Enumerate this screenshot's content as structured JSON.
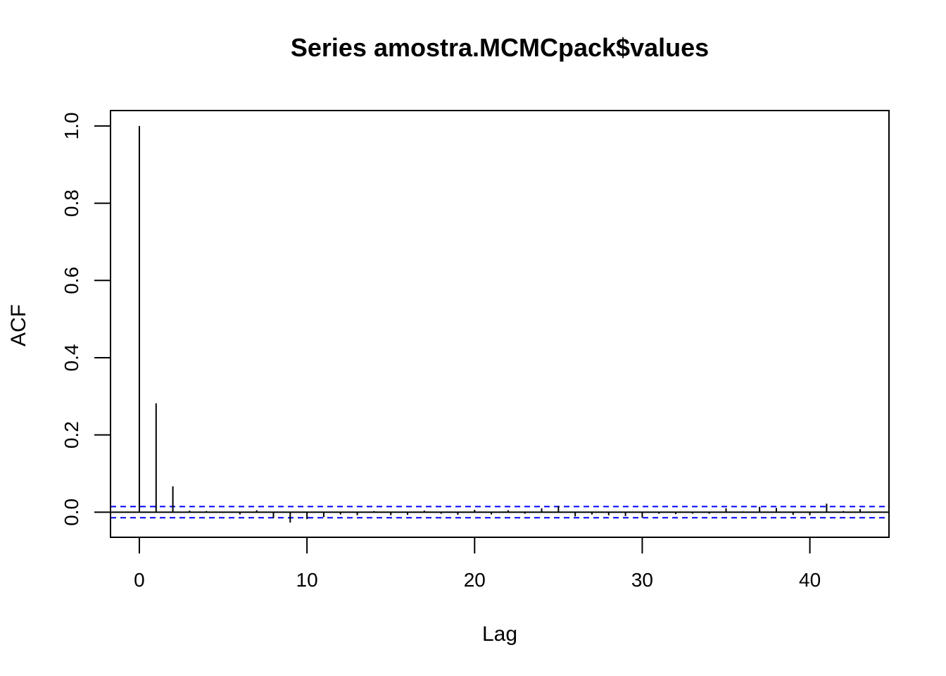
{
  "chart_data": {
    "type": "bar",
    "title": "Series  amostra.MCMCpack$values",
    "xlabel": "Lag",
    "ylabel": "ACF",
    "xlim": [
      -1.72,
      44.72
    ],
    "ylim": [
      -0.065,
      1.04
    ],
    "x_ticks": [
      0,
      10,
      20,
      30,
      40
    ],
    "y_ticks": [
      0.0,
      0.2,
      0.4,
      0.6,
      0.8,
      1.0
    ],
    "x_tick_labels": [
      "0",
      "10",
      "20",
      "30",
      "40"
    ],
    "y_tick_labels": [
      "0.0",
      "0.2",
      "0.4",
      "0.6",
      "0.8",
      "1.0"
    ],
    "lags": [
      0,
      1,
      2,
      3,
      4,
      5,
      6,
      7,
      8,
      9,
      10,
      11,
      12,
      13,
      14,
      15,
      16,
      17,
      18,
      19,
      20,
      21,
      22,
      23,
      24,
      25,
      26,
      27,
      28,
      29,
      30,
      31,
      32,
      33,
      34,
      35,
      36,
      37,
      38,
      39,
      40,
      41,
      42,
      43
    ],
    "acf": [
      1.0,
      0.282,
      0.067,
      0.004,
      0.003,
      -0.002,
      -0.006,
      0.005,
      -0.015,
      -0.027,
      -0.018,
      -0.013,
      -0.006,
      -0.008,
      0.003,
      -0.008,
      -0.007,
      0.004,
      -0.004,
      -0.007,
      0.006,
      -0.006,
      0.005,
      -0.004,
      0.01,
      0.016,
      -0.011,
      -0.006,
      -0.008,
      -0.01,
      -0.014,
      -0.004,
      -0.005,
      -0.004,
      -0.004,
      0.01,
      0.002,
      0.014,
      0.011,
      -0.007,
      -0.008,
      0.022,
      0.003,
      0.008
    ],
    "ci_level": 0.0145,
    "colors": {
      "stems": "#000000",
      "ci": "#0000ff",
      "frame": "#000000"
    }
  }
}
